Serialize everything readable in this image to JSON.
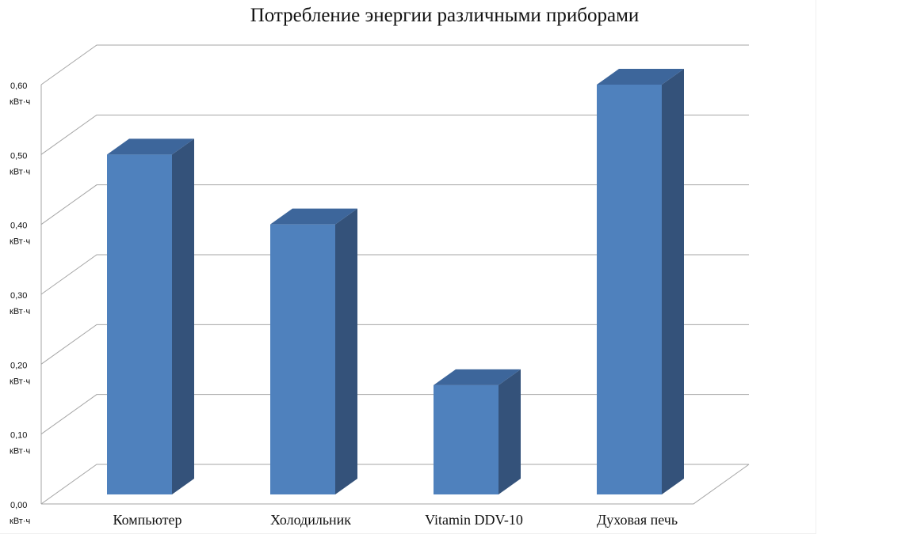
{
  "chart_data": {
    "type": "bar",
    "title": "Потребление энергии различными приборами",
    "categories": [
      "Компьютер",
      "Холодильник",
      "Vitamin DDV-10",
      "Духовая печь"
    ],
    "values": [
      0.5,
      0.4,
      0.17,
      0.6
    ],
    "ylim": [
      0,
      0.6
    ],
    "yticks": [
      "0,00",
      "0,10",
      "0,20",
      "0,30",
      "0,40",
      "0,50",
      "0,60"
    ],
    "ytick_unit": "кВт·ч",
    "grid": true,
    "legend": "none",
    "colors": {
      "front": "#4f81bd",
      "side": "#34527a",
      "top": "#3d669b",
      "grid": "#a6a6a6"
    }
  }
}
